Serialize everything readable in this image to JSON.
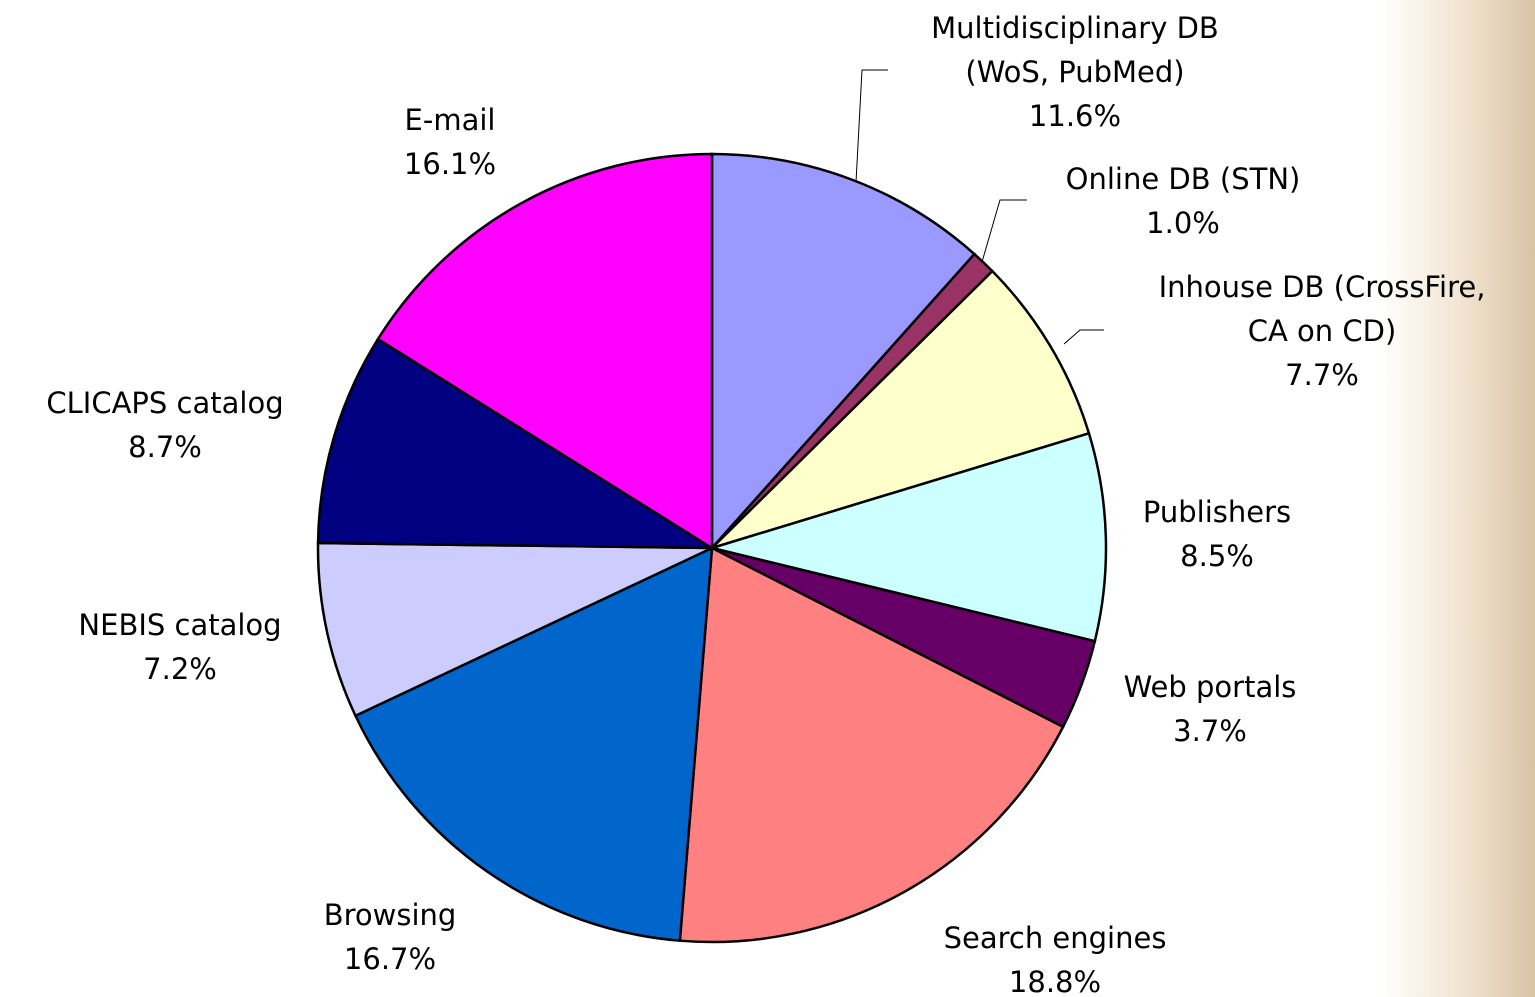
{
  "chart_data": {
    "type": "pie",
    "categories": [
      [
        "Multidisciplinary DB",
        "(WoS, PubMed)"
      ],
      [
        "Online DB (STN)"
      ],
      [
        "Inhouse DB (CrossFire,",
        "CA on CD)"
      ],
      [
        "Publishers"
      ],
      [
        "Web portals"
      ],
      [
        "Search engines"
      ],
      [
        "Browsing"
      ],
      [
        "NEBIS catalog"
      ],
      [
        "CLICAPS catalog"
      ],
      [
        "E-mail"
      ]
    ],
    "values": [
      11.6,
      1.0,
      7.7,
      8.5,
      3.7,
      18.8,
      16.7,
      7.2,
      8.7,
      16.1
    ],
    "value_labels": [
      "11.6%",
      "1.0%",
      "7.7%",
      "8.5%",
      "3.7%",
      "18.8%",
      "16.7%",
      "7.2%",
      "8.7%",
      "16.1%"
    ],
    "colors": [
      "#9999ff",
      "#993366",
      "#ffffcc",
      "#ccffff",
      "#660066",
      "#ff8080",
      "#0066cc",
      "#ccccff",
      "#000080",
      "#ff00ff"
    ]
  }
}
